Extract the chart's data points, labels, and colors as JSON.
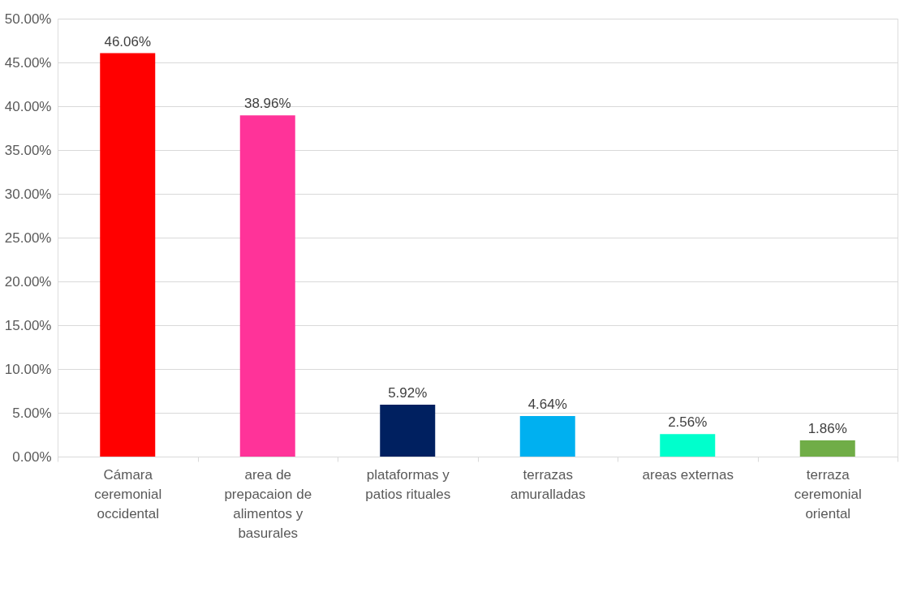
{
  "chart_data": {
    "type": "bar",
    "categories": [
      "Cámara ceremonial occidental",
      "area de prepacaion de alimentos y basurales",
      "plataformas y patios rituales",
      "terrazas amuralladas",
      "areas externas",
      "terraza ceremonial oriental"
    ],
    "values": [
      46.06,
      38.96,
      5.92,
      4.64,
      2.56,
      1.86
    ],
    "colors": [
      "#ff0000",
      "#ff3399",
      "#002060",
      "#00b0f0",
      "#00ffcc",
      "#70ad47"
    ],
    "value_labels": [
      "46.06%",
      "38.96%",
      "5.92%",
      "4.64%",
      "2.56%",
      "1.86%"
    ],
    "ylim": [
      0,
      50
    ],
    "yticks": [
      {
        "value": 0,
        "label": "0.00%"
      },
      {
        "value": 5,
        "label": "5.00%"
      },
      {
        "value": 10,
        "label": "10.00%"
      },
      {
        "value": 15,
        "label": "15.00%"
      },
      {
        "value": 20,
        "label": "20.00%"
      },
      {
        "value": 25,
        "label": "25.00%"
      },
      {
        "value": 30,
        "label": "30.00%"
      },
      {
        "value": 35,
        "label": "35.00%"
      },
      {
        "value": 40,
        "label": "40.00%"
      },
      {
        "value": 45,
        "label": "45.00%"
      },
      {
        "value": 50,
        "label": "50.00%"
      }
    ],
    "grid": "y"
  }
}
